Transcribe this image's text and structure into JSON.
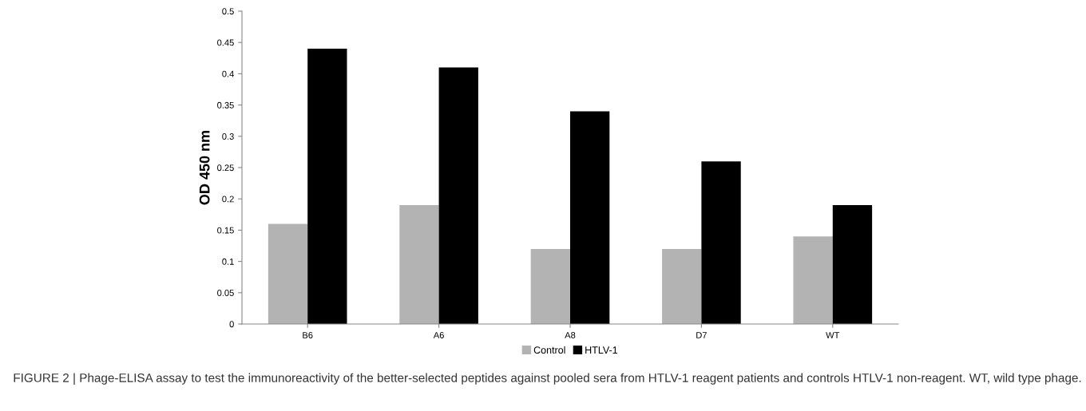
{
  "chart_data": {
    "type": "bar",
    "ylabel": "OD 450 nm",
    "categories": [
      "B6",
      "A6",
      "A8",
      "D7",
      "WT"
    ],
    "series": [
      {
        "name": "Control",
        "color": "#b3b3b3",
        "values": [
          0.16,
          0.19,
          0.12,
          0.12,
          0.14
        ]
      },
      {
        "name": "HTLV-1",
        "color": "#000000",
        "values": [
          0.44,
          0.41,
          0.34,
          0.26,
          0.19
        ]
      }
    ],
    "ylim": [
      0,
      0.5
    ],
    "yticks": [
      0,
      0.05,
      0.1,
      0.15,
      0.2,
      0.25,
      0.3,
      0.35,
      0.4,
      0.45,
      0.5
    ],
    "grid": false,
    "legend": "bottom",
    "annotations": [
      "FIGURE 2 | Phage-ELISA assay to test the immunoreactivity of the better-selected peptides against pooled sera from HTLV-1 reagent patients and controls HTLV-1 non-reagent. WT, wild type phage."
    ]
  }
}
